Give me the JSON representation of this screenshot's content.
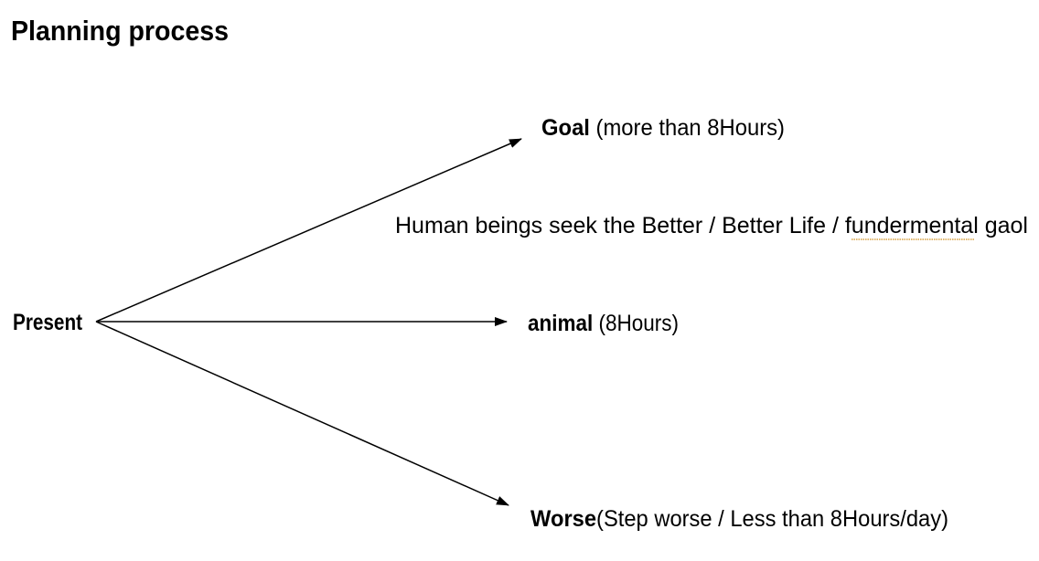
{
  "title": "Planning process",
  "origin": {
    "label": "Present"
  },
  "branches": [
    {
      "bold": "Goal",
      "rest": " (more than 8Hours)"
    },
    {
      "bold": "animal",
      "rest": " (8Hours)"
    },
    {
      "bold": "Worse",
      "rest": "(Step worse / Less than 8Hours/day)"
    }
  ],
  "note": {
    "prefix": "Human beings seek the Better / Better Life / ",
    "misspelled": "fundermental",
    "suffix": " gaol"
  },
  "colors": {
    "text": "#000000",
    "spellcheck_underline": "#d8a040"
  }
}
